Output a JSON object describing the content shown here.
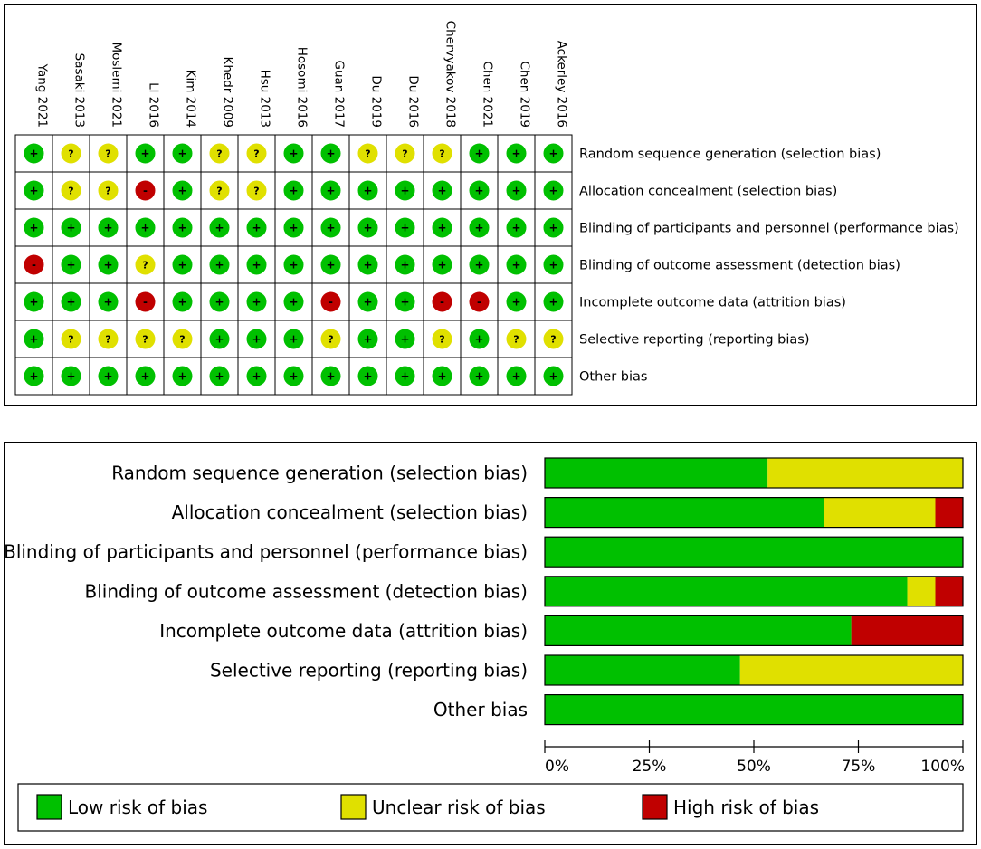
{
  "colors": {
    "low": "#00c000",
    "unclear": "#e0e000",
    "high": "#c00000"
  },
  "summary": {
    "studies": [
      "Yang 2021",
      "Sasaki 2013",
      "Moslemi 2021",
      "Li 2016",
      "Kim 2014",
      "Khedr 2009",
      "Hsu 2013",
      "Hosomi 2016",
      "Guan 2017",
      "Du 2019",
      "Du 2016",
      "Chervyakov 2018",
      "Chen 2021",
      "Chen 2019",
      "Ackerley 2016"
    ],
    "domains": [
      "Random sequence generation (selection bias)",
      "Allocation concealment (selection bias)",
      "Blinding of participants and personnel (performance bias)",
      "Blinding of outcome assessment (detection bias)",
      "Incomplete outcome data (attrition bias)",
      "Selective reporting (reporting bias)",
      "Other bias"
    ],
    "judgements": [
      [
        "+",
        "?",
        "?",
        "+",
        "+",
        "?",
        "?",
        "+",
        "+",
        "?",
        "?",
        "?",
        "+",
        "+",
        "+"
      ],
      [
        "+",
        "?",
        "?",
        "-",
        "+",
        "?",
        "?",
        "+",
        "+",
        "+",
        "+",
        "+",
        "+",
        "+",
        "+"
      ],
      [
        "+",
        "+",
        "+",
        "+",
        "+",
        "+",
        "+",
        "+",
        "+",
        "+",
        "+",
        "+",
        "+",
        "+",
        "+"
      ],
      [
        "-",
        "+",
        "+",
        "?",
        "+",
        "+",
        "+",
        "+",
        "+",
        "+",
        "+",
        "+",
        "+",
        "+",
        "+"
      ],
      [
        "+",
        "+",
        "+",
        "-",
        "+",
        "+",
        "+",
        "+",
        "-",
        "+",
        "+",
        "-",
        "-",
        "+",
        "+"
      ],
      [
        "+",
        "?",
        "?",
        "?",
        "?",
        "+",
        "+",
        "+",
        "?",
        "+",
        "+",
        "?",
        "+",
        "?",
        "?"
      ],
      [
        "+",
        "+",
        "+",
        "+",
        "+",
        "+",
        "+",
        "+",
        "+",
        "+",
        "+",
        "+",
        "+",
        "+",
        "+"
      ]
    ]
  },
  "chart_data": {
    "type": "bar",
    "orientation": "horizontal",
    "stacked": true,
    "categories": [
      "Random sequence generation (selection bias)",
      "Allocation concealment (selection bias)",
      "Blinding of participants and personnel (performance bias)",
      "Blinding of outcome assessment (detection bias)",
      "Incomplete outcome data (attrition bias)",
      "Selective reporting (reporting bias)",
      "Other bias"
    ],
    "series": [
      {
        "name": "Low risk of bias",
        "color": "#00c000",
        "values": [
          53.3,
          66.7,
          100,
          86.7,
          73.3,
          46.7,
          100
        ]
      },
      {
        "name": "Unclear risk of bias",
        "color": "#e0e000",
        "values": [
          46.7,
          26.7,
          0,
          6.7,
          0,
          53.3,
          0
        ]
      },
      {
        "name": "High risk of bias",
        "color": "#c00000",
        "values": [
          0,
          6.7,
          0,
          6.7,
          26.7,
          0,
          0
        ]
      }
    ],
    "xlim": [
      0,
      100
    ],
    "xticks": [
      "0%",
      "25%",
      "50%",
      "75%",
      "100%"
    ],
    "legend": [
      "Low risk of bias",
      "Unclear risk of bias",
      "High risk of bias"
    ]
  }
}
